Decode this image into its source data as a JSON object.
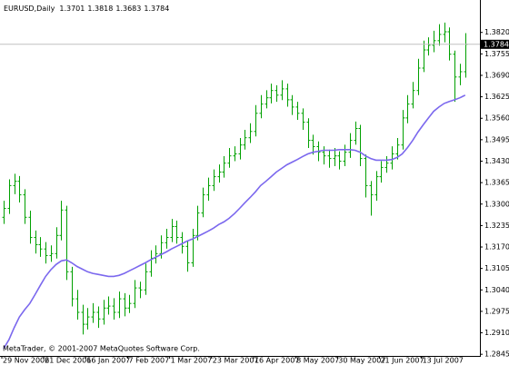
{
  "chart_data": {
    "type": "ohlc",
    "title": "EURUSD,Daily",
    "watermark": "MetaTrader, © 2001-2007 MetaQuotes Software Corp.",
    "color": "#00a000",
    "grid": false,
    "categories": [
      "29 Nov 2006",
      null,
      null,
      null,
      null,
      null,
      null,
      null,
      "21 Dec 2006",
      null,
      null,
      null,
      null,
      null,
      null,
      null,
      "16 Jan 2007",
      null,
      null,
      null,
      null,
      null,
      null,
      null,
      "7 Feb 2007",
      null,
      null,
      null,
      null,
      null,
      null,
      null,
      "1 Mar 2007",
      null,
      null,
      null,
      null,
      null,
      null,
      null,
      "23 Mar 2007",
      null,
      null,
      null,
      null,
      null,
      null,
      null,
      "16 Apr 2007",
      null,
      null,
      null,
      null,
      null,
      null,
      null,
      "8 May 2007",
      null,
      null,
      null,
      null,
      null,
      null,
      null,
      "30 May 2007",
      null,
      null,
      null,
      null,
      null,
      null,
      null,
      "21 Jun 2007",
      null,
      null,
      null,
      null,
      null,
      null,
      null,
      "13 Jul 2007",
      null,
      null,
      null,
      null,
      null,
      null,
      null,
      null
    ],
    "open": [
      1.326,
      1.3287,
      1.3356,
      1.3369,
      1.3328,
      1.326,
      1.3199,
      1.3177,
      1.3164,
      1.3144,
      1.315,
      1.3205,
      1.3282,
      1.3095,
      1.3013,
      1.2972,
      1.2936,
      1.2958,
      1.2972,
      1.2952,
      1.2985,
      1.2991,
      1.2972,
      1.3013,
      1.2985,
      1.2999,
      1.3046,
      1.304,
      1.3095,
      1.3136,
      1.315,
      1.3183,
      1.3199,
      1.3232,
      1.3199,
      1.3172,
      1.3122,
      1.3205,
      1.3273,
      1.3328,
      1.3356,
      1.3383,
      1.3397,
      1.3424,
      1.3446,
      1.3452,
      1.3479,
      1.3501,
      1.352,
      1.3575,
      1.3603,
      1.3622,
      1.3644,
      1.363,
      1.3649,
      1.3616,
      1.3594,
      1.3575,
      1.3548,
      1.3493,
      1.3474,
      1.3457,
      1.3446,
      1.3438,
      1.3446,
      1.343,
      1.3457,
      1.3493,
      1.3529,
      1.3438,
      1.3356,
      1.3328,
      1.3383,
      1.3411,
      1.3424,
      1.3452,
      1.3479,
      1.3561,
      1.3603,
      1.3644,
      1.3712,
      1.3767,
      1.3781,
      1.3795,
      1.3814,
      1.3822,
      1.3754,
      1.3685,
      1.3701
    ],
    "high": [
      1.331,
      1.3375,
      1.3392,
      1.3385,
      1.3345,
      1.328,
      1.322,
      1.32,
      1.3185,
      1.3175,
      1.323,
      1.331,
      1.3295,
      1.311,
      1.304,
      1.2995,
      1.2985,
      1.3,
      1.299,
      1.301,
      1.302,
      1.3015,
      1.3035,
      1.303,
      1.3025,
      1.307,
      1.3065,
      1.312,
      1.316,
      1.3175,
      1.3205,
      1.3225,
      1.3255,
      1.325,
      1.3215,
      1.319,
      1.3225,
      1.3295,
      1.335,
      1.338,
      1.3405,
      1.342,
      1.3445,
      1.347,
      1.3475,
      1.35,
      1.3525,
      1.3545,
      1.36,
      1.363,
      1.3645,
      1.3665,
      1.366,
      1.3675,
      1.3665,
      1.363,
      1.361,
      1.359,
      1.356,
      1.351,
      1.349,
      1.3475,
      1.3465,
      1.347,
      1.346,
      1.348,
      1.3515,
      1.355,
      1.354,
      1.345,
      1.337,
      1.34,
      1.343,
      1.3445,
      1.3475,
      1.35,
      1.3585,
      1.363,
      1.367,
      1.374,
      1.3795,
      1.3805,
      1.3825,
      1.3845,
      1.385,
      1.3835,
      1.3765,
      1.3725,
      1.3818
    ],
    "low": [
      1.324,
      1.327,
      1.333,
      1.3305,
      1.324,
      1.318,
      1.315,
      1.314,
      1.312,
      1.3125,
      1.3135,
      1.319,
      1.307,
      1.299,
      1.295,
      1.2905,
      1.292,
      1.294,
      1.2925,
      1.2935,
      1.2965,
      1.295,
      1.2955,
      1.296,
      1.297,
      1.2985,
      1.3015,
      1.3025,
      1.308,
      1.312,
      1.3135,
      1.3165,
      1.3185,
      1.318,
      1.315,
      1.3095,
      1.311,
      1.319,
      1.326,
      1.331,
      1.334,
      1.3365,
      1.338,
      1.341,
      1.343,
      1.3435,
      1.3465,
      1.3485,
      1.3505,
      1.356,
      1.359,
      1.3605,
      1.361,
      1.3615,
      1.3595,
      1.357,
      1.3555,
      1.3525,
      1.347,
      1.345,
      1.343,
      1.342,
      1.341,
      1.3415,
      1.3405,
      1.3415,
      1.344,
      1.348,
      1.3415,
      1.332,
      1.3265,
      1.331,
      1.3365,
      1.3395,
      1.3405,
      1.3435,
      1.3465,
      1.3545,
      1.359,
      1.363,
      1.37,
      1.375,
      1.376,
      1.378,
      1.379,
      1.3735,
      1.361,
      1.366,
      1.3683
    ],
    "close": [
      1.3287,
      1.3356,
      1.3369,
      1.3328,
      1.326,
      1.3199,
      1.3177,
      1.3164,
      1.3144,
      1.315,
      1.3205,
      1.3282,
      1.3095,
      1.3013,
      1.2972,
      1.2936,
      1.2958,
      1.2972,
      1.2952,
      1.2985,
      1.2991,
      1.2972,
      1.3013,
      1.2985,
      1.2999,
      1.3046,
      1.304,
      1.3095,
      1.3136,
      1.315,
      1.3183,
      1.3199,
      1.3232,
      1.3199,
      1.3172,
      1.3122,
      1.3205,
      1.3273,
      1.3328,
      1.3356,
      1.3383,
      1.3397,
      1.3424,
      1.3446,
      1.3452,
      1.3479,
      1.3501,
      1.352,
      1.3575,
      1.3603,
      1.3622,
      1.3644,
      1.363,
      1.3649,
      1.3616,
      1.3594,
      1.3575,
      1.3548,
      1.3493,
      1.3474,
      1.3457,
      1.3446,
      1.3438,
      1.3446,
      1.343,
      1.3457,
      1.3493,
      1.3529,
      1.3438,
      1.3356,
      1.3328,
      1.3383,
      1.3411,
      1.3424,
      1.3452,
      1.3479,
      1.3561,
      1.3603,
      1.3644,
      1.3712,
      1.3767,
      1.3781,
      1.3795,
      1.3814,
      1.3822,
      1.3754,
      1.3685,
      1.3701,
      1.3784
    ],
    "moving_average": {
      "color": "#7b68ee",
      "values": [
        1.2862,
        1.2889,
        1.2925,
        1.2958,
        1.298,
        1.2999,
        1.3026,
        1.3054,
        1.3081,
        1.3101,
        1.3117,
        1.3128,
        1.3131,
        1.3122,
        1.3111,
        1.3103,
        1.3095,
        1.309,
        1.3087,
        1.3084,
        1.3081,
        1.3081,
        1.3084,
        1.309,
        1.3098,
        1.3106,
        1.3114,
        1.3122,
        1.3131,
        1.3139,
        1.3147,
        1.3155,
        1.3164,
        1.3172,
        1.318,
        1.3188,
        1.3194,
        1.3202,
        1.321,
        1.3218,
        1.3227,
        1.3238,
        1.3246,
        1.3257,
        1.3271,
        1.3287,
        1.3304,
        1.332,
        1.3337,
        1.3356,
        1.3369,
        1.3383,
        1.3397,
        1.3408,
        1.3419,
        1.3427,
        1.3435,
        1.3444,
        1.3452,
        1.3457,
        1.346,
        1.3463,
        1.3463,
        1.3463,
        1.3465,
        1.3465,
        1.3465,
        1.3463,
        1.3457,
        1.3446,
        1.3438,
        1.3433,
        1.3433,
        1.3433,
        1.3435,
        1.3441,
        1.3452,
        1.3471,
        1.3493,
        1.3518,
        1.354,
        1.3561,
        1.3581,
        1.3594,
        1.3605,
        1.3611,
        1.3616,
        1.3622,
        1.363
      ]
    },
    "ylim": [
      1.284,
      1.391
    ],
    "yticks": [
      {
        "value": 1.382,
        "label": "1.3820"
      },
      1.3755,
      {
        "value": 1.369,
        "label": "1.3690"
      },
      1.3625,
      {
        "value": 1.356,
        "label": "1.3560"
      },
      1.3495,
      {
        "value": 1.343,
        "label": "1.3430"
      },
      1.3365,
      {
        "value": 1.33,
        "label": "1.3300"
      },
      1.3235,
      {
        "value": 1.317,
        "label": "1.3170"
      },
      1.3105,
      {
        "value": 1.304,
        "label": "1.3040"
      },
      1.2975,
      {
        "value": 1.291,
        "label": "1.2910"
      },
      1.2845
    ]
  }
}
